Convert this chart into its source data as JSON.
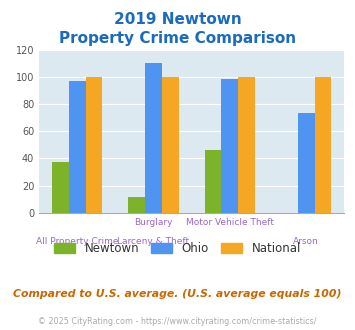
{
  "title_line1": "2019 Newtown",
  "title_line2": "Property Crime Comparison",
  "newtown": [
    37,
    12,
    46,
    0
  ],
  "ohio": [
    97,
    110,
    98,
    73
  ],
  "national": [
    100,
    100,
    100,
    100
  ],
  "newtown_color": "#7db32a",
  "ohio_color": "#4f94f0",
  "national_color": "#f5a623",
  "bg_color": "#dce9f0",
  "title_color": "#1a6bbf",
  "label_color": "#9966cc",
  "ylim": [
    0,
    120
  ],
  "yticks": [
    0,
    20,
    40,
    60,
    80,
    100,
    120
  ],
  "footnote": "Compared to U.S. average. (U.S. average equals 100)",
  "credit": "© 2025 CityRating.com - https://www.cityrating.com/crime-statistics/",
  "footnote_color": "#cc6600",
  "credit_color": "#aaaaaa",
  "credit_url_color": "#4f94f0",
  "cat_labels_top": [
    "",
    "Burglary",
    "Motor Vehicle Theft",
    ""
  ],
  "cat_labels_bot": [
    "All Property Crime",
    "Larceny & Theft",
    "",
    "Arson"
  ]
}
